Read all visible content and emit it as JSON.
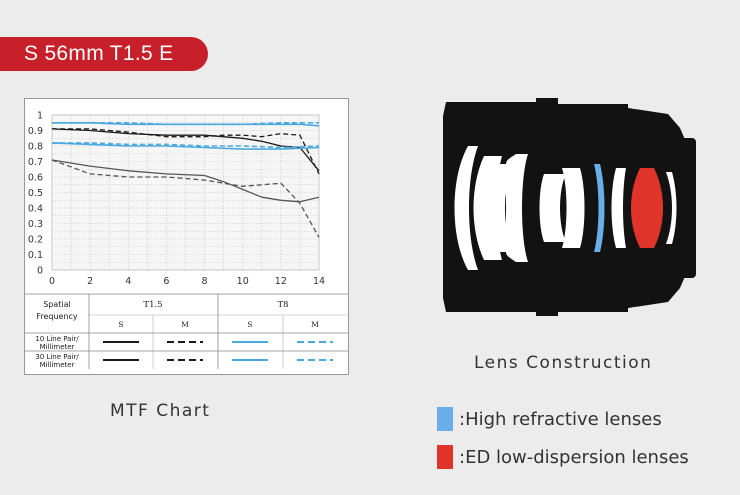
{
  "banner": {
    "title": "S 56mm T1.5 E"
  },
  "captions": {
    "mtf": "MTF Chart",
    "lens": "Lens Construction"
  },
  "legend": [
    {
      "label": ":High refractive lenses",
      "color": "#6aaee8"
    },
    {
      "label": ":ED low-dispersion lenses",
      "color": "#e0332a"
    }
  ],
  "lens_colors": {
    "body": "#121212",
    "element": "#ffffff",
    "high_refractive": "#6aaee8",
    "ed": "#e0332a"
  },
  "mtf_table": {
    "row_header": "Spatial Frequency",
    "groups": [
      "T1.5",
      "T8"
    ],
    "subheaders": [
      "S",
      "M",
      "S",
      "M"
    ],
    "rows": [
      "10 Line Pair/ Millimeter",
      "30 Line Pair/ Millimeter"
    ]
  },
  "chart_data": {
    "type": "line",
    "title": "",
    "xlabel": "",
    "ylabel": "",
    "xlim": [
      0,
      14
    ],
    "ylim": [
      0,
      1
    ],
    "xticks": [
      0,
      2,
      4,
      6,
      8,
      10,
      12,
      14
    ],
    "yticks": [
      0,
      0.1,
      0.2,
      0.3,
      0.4,
      0.5,
      0.6,
      0.7,
      0.8,
      0.9,
      1
    ],
    "grid": true,
    "series": [
      {
        "aperture": "T1.5",
        "lp": 10,
        "orientation": "S",
        "color": "#1a1a1a",
        "dash": "solid",
        "x": [
          0,
          2,
          4,
          6,
          8,
          10,
          11,
          12,
          13,
          14
        ],
        "y": [
          0.91,
          0.9,
          0.88,
          0.87,
          0.87,
          0.85,
          0.83,
          0.8,
          0.79,
          0.64
        ]
      },
      {
        "aperture": "T1.5",
        "lp": 10,
        "orientation": "M",
        "color": "#1a1a1a",
        "dash": "dashed",
        "x": [
          0,
          2,
          4,
          6,
          8,
          9,
          10,
          11,
          12,
          13,
          14
        ],
        "y": [
          0.91,
          0.91,
          0.89,
          0.86,
          0.86,
          0.87,
          0.87,
          0.86,
          0.88,
          0.87,
          0.62
        ]
      },
      {
        "aperture": "T1.5",
        "lp": 30,
        "orientation": "S",
        "color": "#555555",
        "dash": "solid",
        "x": [
          0,
          2,
          4,
          6,
          8,
          9,
          10,
          11,
          12,
          13,
          14
        ],
        "y": [
          0.71,
          0.67,
          0.64,
          0.62,
          0.61,
          0.57,
          0.52,
          0.47,
          0.45,
          0.44,
          0.47
        ]
      },
      {
        "aperture": "T1.5",
        "lp": 30,
        "orientation": "M",
        "color": "#555555",
        "dash": "dashed",
        "x": [
          0,
          2,
          4,
          6,
          8,
          10,
          11,
          12,
          13,
          14
        ],
        "y": [
          0.71,
          0.62,
          0.6,
          0.6,
          0.58,
          0.54,
          0.55,
          0.56,
          0.43,
          0.21
        ]
      },
      {
        "aperture": "T8",
        "lp": 10,
        "orientation": "S",
        "color": "#4aa8e0",
        "dash": "solid",
        "x": [
          0,
          2,
          4,
          6,
          8,
          10,
          12,
          13,
          14
        ],
        "y": [
          0.95,
          0.95,
          0.94,
          0.94,
          0.94,
          0.94,
          0.94,
          0.94,
          0.93
        ]
      },
      {
        "aperture": "T8",
        "lp": 10,
        "orientation": "M",
        "color": "#4aa8e0",
        "dash": "dashed",
        "x": [
          0,
          2,
          4,
          6,
          8,
          10,
          12,
          13,
          14
        ],
        "y": [
          0.95,
          0.95,
          0.95,
          0.94,
          0.94,
          0.94,
          0.95,
          0.95,
          0.95
        ]
      },
      {
        "aperture": "T8",
        "lp": 30,
        "orientation": "S",
        "color": "#4aa8e0",
        "dash": "solid",
        "x": [
          0,
          2,
          4,
          6,
          8,
          10,
          12,
          14
        ],
        "y": [
          0.82,
          0.81,
          0.8,
          0.8,
          0.79,
          0.78,
          0.78,
          0.79
        ]
      },
      {
        "aperture": "T8",
        "lp": 30,
        "orientation": "M",
        "color": "#4aa8e0",
        "dash": "dashed",
        "x": [
          0,
          2,
          4,
          6,
          8,
          10,
          12,
          14
        ],
        "y": [
          0.82,
          0.82,
          0.81,
          0.81,
          0.8,
          0.8,
          0.79,
          0.8
        ]
      }
    ]
  }
}
